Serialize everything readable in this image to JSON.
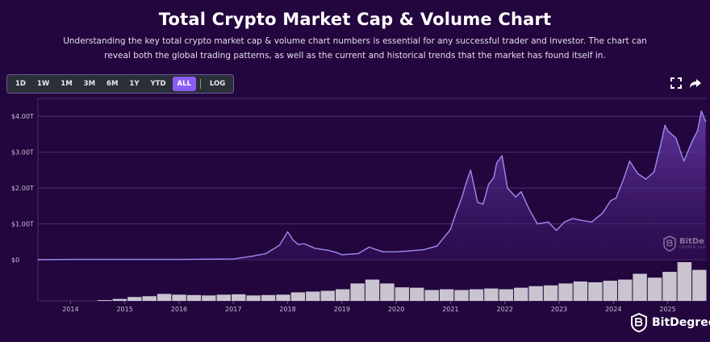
{
  "header": {
    "title": "Total Crypto Market Cap & Volume Chart",
    "subtitle": "Understanding the key total crypto market cap & volume chart numbers is essential for any successful trader and investor. The chart can reveal both the global trading patterns, as well as the current and historical trends that the market has found itself in."
  },
  "toolbar": {
    "ranges": [
      "1D",
      "1W",
      "1M",
      "3M",
      "6M",
      "1Y",
      "YTD",
      "ALL"
    ],
    "active_range": "ALL",
    "log_label": "LOG"
  },
  "icons": {
    "fullscreen": "fullscreen-icon",
    "share": "share-icon"
  },
  "watermark": {
    "text": "BitDe",
    "subtext": "CRYPTO LEX"
  },
  "brand": {
    "name": "BitDegree"
  },
  "colors": {
    "background": "#22063d",
    "line": "#9d8cf0",
    "area": "#6b3fb0",
    "volume": "#e6e6ea",
    "active_button": "#8b5cf6"
  },
  "chart_data": {
    "type": "area",
    "title": "",
    "xlabel": "",
    "ylabel": "",
    "y_tick_labels": [
      "$0",
      "$1.00T",
      "$2.00T",
      "$3.00T",
      "$4.00T"
    ],
    "y_ticks": [
      0,
      1,
      2,
      3,
      4
    ],
    "ylim": [
      0,
      4.5
    ],
    "y_unit": "trillion USD",
    "x_tick_labels": [
      "2014",
      "2015",
      "2016",
      "2017",
      "2018",
      "2019",
      "2020",
      "2021",
      "2022",
      "2023",
      "2024",
      "2025"
    ],
    "x_ticks": [
      2014,
      2015,
      2016,
      2017,
      2018,
      2019,
      2020,
      2021,
      2022,
      2023,
      2024,
      2025
    ],
    "xlim": [
      2013.4,
      2025.72
    ],
    "grid": true,
    "series": [
      {
        "kind": "market_cap",
        "x": [
          2013.4,
          2014.0,
          2015.0,
          2016.0,
          2017.0,
          2017.35,
          2017.6,
          2017.85,
          2018.0,
          2018.1,
          2018.2,
          2018.3,
          2018.5,
          2018.75,
          2018.9,
          2019.0,
          2019.3,
          2019.5,
          2019.75,
          2020.0,
          2020.2,
          2020.5,
          2020.75,
          2020.95,
          2021.0,
          2021.1,
          2021.2,
          2021.3,
          2021.37,
          2021.5,
          2021.6,
          2021.7,
          2021.8,
          2021.85,
          2021.95,
          2022.05,
          2022.2,
          2022.3,
          2022.45,
          2022.6,
          2022.8,
          2022.95,
          2023.1,
          2023.25,
          2023.4,
          2023.6,
          2023.8,
          2023.95,
          2024.05,
          2024.2,
          2024.3,
          2024.45,
          2024.6,
          2024.75,
          2024.87,
          2024.95,
          2025.0,
          2025.15,
          2025.3,
          2025.45,
          2025.55,
          2025.62,
          2025.7
        ],
        "values": [
          0.0,
          0.01,
          0.01,
          0.01,
          0.02,
          0.1,
          0.17,
          0.4,
          0.78,
          0.55,
          0.42,
          0.45,
          0.32,
          0.26,
          0.2,
          0.14,
          0.17,
          0.35,
          0.22,
          0.22,
          0.24,
          0.28,
          0.38,
          0.75,
          0.85,
          1.3,
          1.7,
          2.2,
          2.5,
          1.6,
          1.55,
          2.1,
          2.3,
          2.7,
          2.9,
          2.0,
          1.75,
          1.9,
          1.4,
          1.0,
          1.05,
          0.82,
          1.05,
          1.15,
          1.1,
          1.05,
          1.3,
          1.65,
          1.72,
          2.3,
          2.75,
          2.4,
          2.25,
          2.45,
          3.2,
          3.75,
          3.6,
          3.4,
          2.75,
          3.3,
          3.6,
          4.15,
          3.85
        ]
      },
      {
        "kind": "volume",
        "values_relative": [
          0,
          0,
          0,
          0,
          0.02,
          0.05,
          0.1,
          0.12,
          0.18,
          0.16,
          0.15,
          0.14,
          0.16,
          0.17,
          0.14,
          0.15,
          0.16,
          0.22,
          0.24,
          0.26,
          0.3,
          0.45,
          0.55,
          0.45,
          0.35,
          0.34,
          0.28,
          0.3,
          0.28,
          0.3,
          0.32,
          0.3,
          0.34,
          0.38,
          0.4,
          0.45,
          0.5,
          0.48,
          0.52,
          0.55,
          0.7,
          0.6,
          0.75,
          1.0,
          0.8
        ]
      }
    ]
  }
}
